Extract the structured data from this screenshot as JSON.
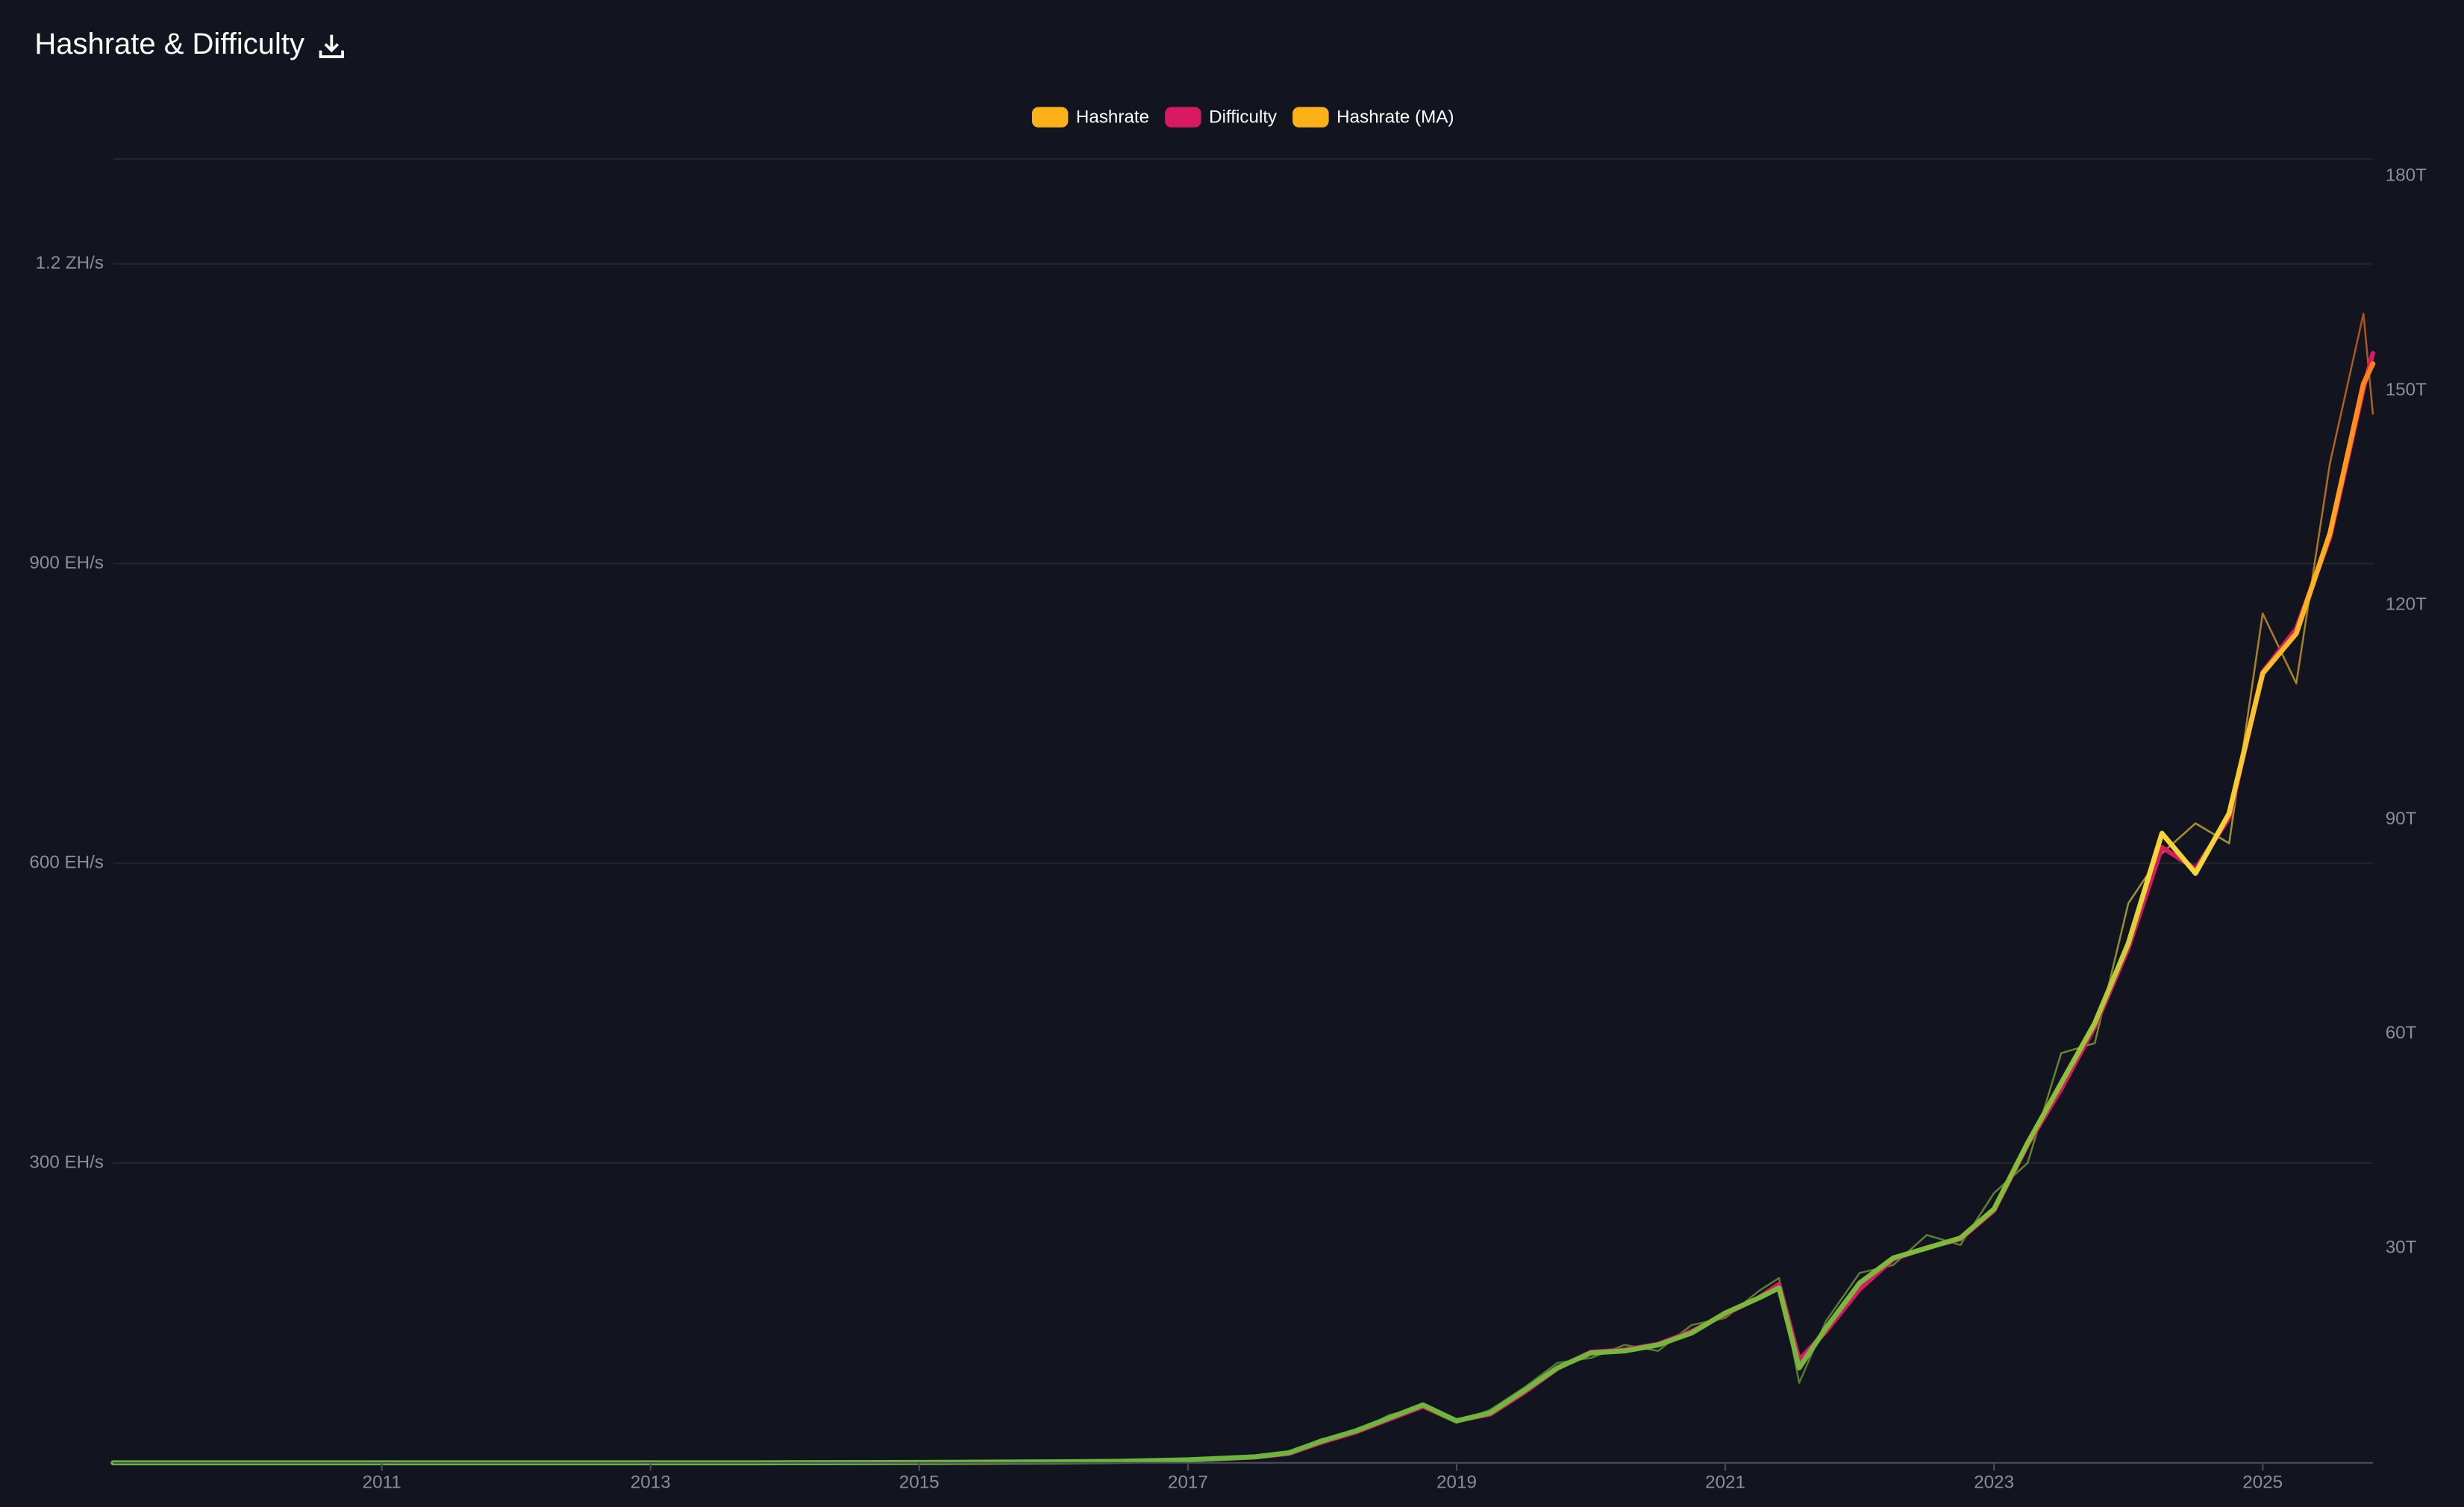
{
  "chart_data": {
    "type": "line",
    "title": "Hashrate & Difficulty",
    "x": [
      2009.0,
      2010.0,
      2011.0,
      2012.0,
      2013.0,
      2014.0,
      2015.0,
      2016.0,
      2016.5,
      2017.0,
      2017.5,
      2017.75,
      2018.0,
      2018.25,
      2018.5,
      2018.75,
      2019.0,
      2019.25,
      2019.5,
      2019.75,
      2020.0,
      2020.25,
      2020.5,
      2020.75,
      2021.0,
      2021.25,
      2021.4,
      2021.55,
      2021.75,
      2022.0,
      2022.25,
      2022.5,
      2022.75,
      2023.0,
      2023.25,
      2023.5,
      2023.75,
      2024.0,
      2024.25,
      2024.5,
      2024.75,
      2025.0,
      2025.25,
      2025.5,
      2025.75,
      2025.82
    ],
    "xlim": [
      2009.0,
      2025.82
    ],
    "xticks": [
      2011,
      2013,
      2015,
      2017,
      2019,
      2021,
      2023,
      2025
    ],
    "ylim": [
      0,
      1305
    ],
    "yticks": [
      {
        "value": 300,
        "label": "300 EH/s"
      },
      {
        "value": 600,
        "label": "600 EH/s"
      },
      {
        "value": 900,
        "label": "900 EH/s"
      },
      {
        "value": 1200,
        "label": "1.2 ZH/s"
      }
    ],
    "y2lim": [
      0,
      182.4
    ],
    "y2ticks": [
      {
        "value": 30,
        "label": "30T"
      },
      {
        "value": 60,
        "label": "60T"
      },
      {
        "value": 90,
        "label": "90T"
      },
      {
        "value": 120,
        "label": "120T"
      },
      {
        "value": 150,
        "label": "150T"
      },
      {
        "value": 180,
        "label": "180T"
      }
    ],
    "grid": true,
    "legend": "top",
    "series": [
      {
        "name": "Hashrate",
        "color": "#fbb117",
        "values": [
          0,
          0,
          0,
          0,
          0,
          0.1,
          0.4,
          1,
          1.6,
          3,
          6,
          11,
          24,
          30,
          48,
          55,
          40,
          53,
          75,
          100,
          105,
          118,
          112,
          138,
          145,
          172,
          185,
          80,
          142,
          190,
          198,
          228,
          218,
          270,
          300,
          410,
          420,
          560,
          610,
          640,
          620,
          850,
          780,
          1000,
          1150,
          1050
        ]
      },
      {
        "name": "Difficulty",
        "color": "#d81b60",
        "axis": "y2",
        "values": [
          0,
          0,
          0,
          0,
          0,
          0.01,
          0.05,
          0.13,
          0.2,
          0.4,
          0.8,
          1.3,
          2.9,
          4.3,
          6.1,
          7.9,
          5.9,
          6.8,
          9.8,
          13.2,
          15.5,
          15.8,
          16.6,
          18.4,
          20.8,
          23.1,
          25,
          14.4,
          18.4,
          24.3,
          28.5,
          30.1,
          31.3,
          35.3,
          44.5,
          52.3,
          61,
          72,
          86.1,
          83.1,
          90.2,
          110.6,
          116.7,
          129.4,
          150.3,
          155.2
        ]
      },
      {
        "name": "Hashrate (MA)",
        "color": "#fbb117",
        "values": [
          0,
          0,
          0,
          0,
          0,
          0.1,
          0.4,
          1,
          1.5,
          3,
          6,
          10,
          22,
          32,
          45,
          58,
          42,
          50,
          72,
          95,
          110,
          112,
          118,
          130,
          150,
          165,
          175,
          95,
          135,
          180,
          205,
          215,
          225,
          254,
          320,
          380,
          440,
          520,
          630,
          590,
          650,
          790,
          830,
          930,
          1080,
          1100
        ]
      }
    ]
  }
}
